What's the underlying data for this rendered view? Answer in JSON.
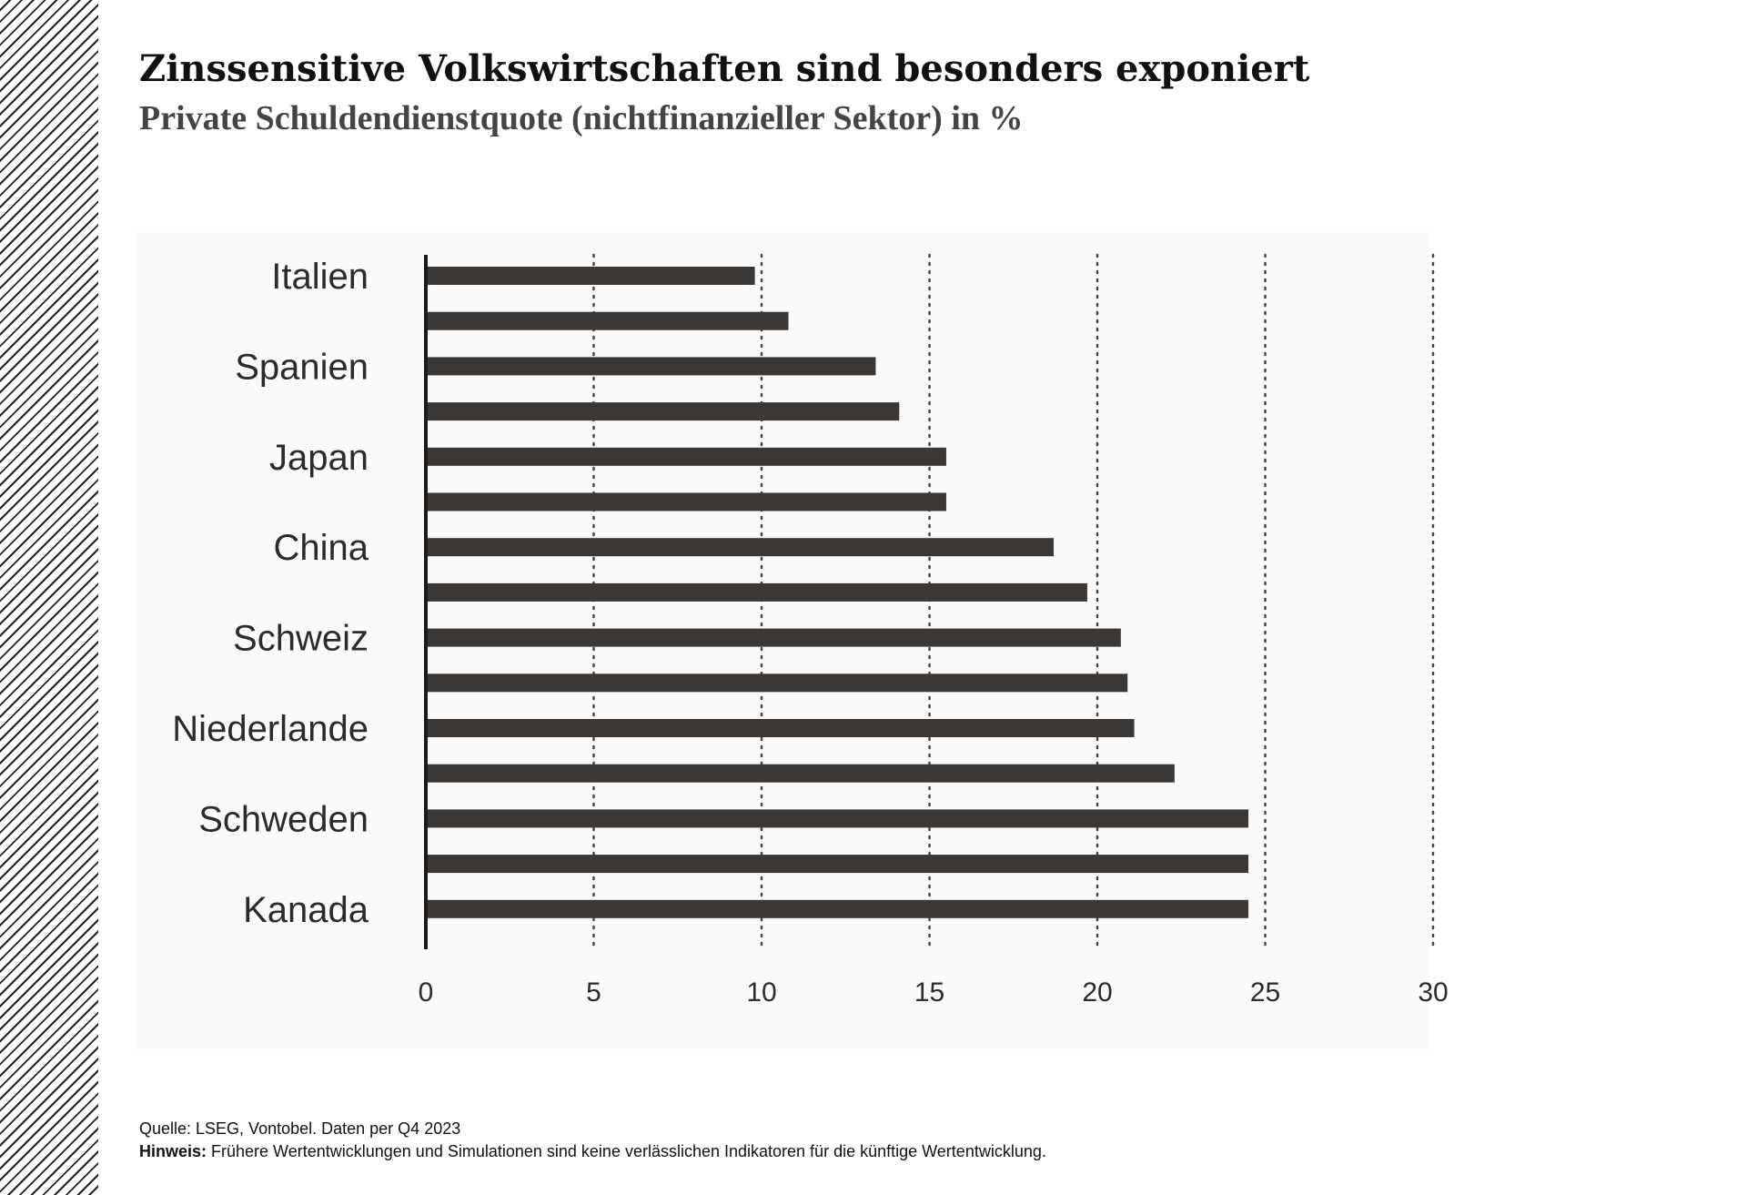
{
  "header": {
    "title": "Zinssensitive Volkswirtschaften sind besonders exponiert",
    "subtitle": "Private Schuldendienstquote (nichtfinanzieller Sektor) in %"
  },
  "footer": {
    "source": "Quelle: LSEG, Vontobel. Daten per Q4 2023",
    "note_label": "Hinweis:",
    "note_text": "Frühere Wertentwicklungen und Simulationen sind keine verlässlichen Indikatoren für die künftige Wertentwicklung."
  },
  "colors": {
    "bar": "#3a3734",
    "axis": "#1a1a1a",
    "grid": "#444444",
    "text": "#2b2b2b"
  },
  "chart_data": {
    "type": "bar",
    "orientation": "horizontal",
    "category_labels": [
      "Italien",
      "",
      "Spanien",
      "",
      "Japan",
      "",
      "China",
      "",
      "Schweiz",
      "",
      "Niederlande",
      "",
      "Schweden",
      "",
      "Kanada"
    ],
    "values": [
      9.8,
      10.8,
      13.4,
      14.1,
      15.5,
      15.5,
      18.7,
      19.7,
      20.7,
      20.9,
      21.1,
      22.3,
      24.5,
      24.5,
      24.5
    ],
    "xlim": [
      0,
      30
    ],
    "x_ticks": [
      0,
      5,
      10,
      15,
      20,
      25,
      30
    ],
    "grid": "vertical dotted",
    "legend": "none"
  }
}
